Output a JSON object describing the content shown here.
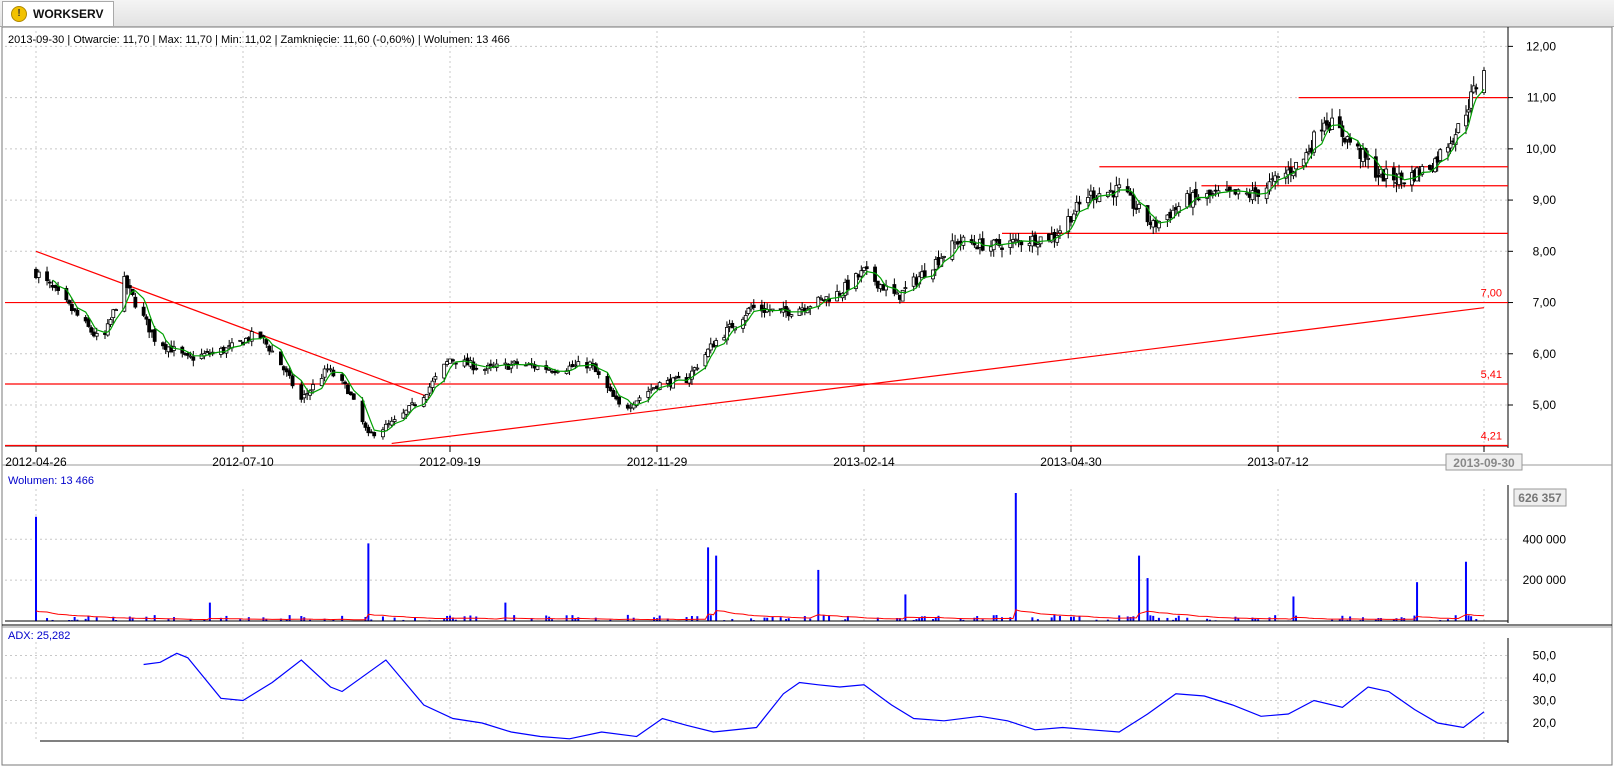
{
  "tab": {
    "label": "WORKSERV",
    "icon": "warning-icon"
  },
  "info_line": {
    "date": "2013-09-30",
    "otwarcie": "11,70",
    "max": "11,70",
    "min": "11,02",
    "zamkniecie": "11,60 (-0,60%)",
    "wolumen": "13 466",
    "text": "2013-09-30 | Otwarcie: 11,70 | Max: 11,70 | Min: 11,02 | Zamknięcie: 11,60 (-0,60%)  | Wolumen: 13 466"
  },
  "colors": {
    "candle": "#000000",
    "ma": "#00a000",
    "lines": "#ff0000",
    "volume": "#0000ff",
    "adx": "#0000ff",
    "grid": "#c8c8c8"
  },
  "chart_data": [
    {
      "type": "candlestick",
      "name": "price",
      "x_ticks": [
        "2012-04-26",
        "2012-07-10",
        "2012-09-19",
        "2012-11-29",
        "2013-02-14",
        "2013-04-30",
        "2013-07-12",
        "2013-09-30"
      ],
      "y_ticks": [
        "12,00",
        "11,00",
        "10,00",
        "9,00",
        "8,00",
        "7,00",
        "6,00",
        "5,00"
      ],
      "ylim": [
        4.2,
        12.3
      ],
      "grid": true,
      "close_path": [
        [
          "2012-04-26",
          7.6
        ],
        [
          "2012-05-10",
          6.8
        ],
        [
          "2012-05-20",
          6.2
        ],
        [
          "2012-05-28",
          7.4
        ],
        [
          "2012-06-08",
          6.3
        ],
        [
          "2012-06-20",
          5.9
        ],
        [
          "2012-07-05",
          6.1
        ],
        [
          "2012-07-15",
          6.4
        ],
        [
          "2012-07-22",
          5.9
        ],
        [
          "2012-07-30",
          5.1
        ],
        [
          "2012-08-08",
          5.7
        ],
        [
          "2012-08-15",
          5.3
        ],
        [
          "2012-08-22",
          4.4
        ],
        [
          "2012-09-01",
          4.7
        ],
        [
          "2012-09-10",
          5.2
        ],
        [
          "2012-09-19",
          5.9
        ],
        [
          "2012-10-01",
          5.7
        ],
        [
          "2012-10-12",
          5.8
        ],
        [
          "2012-10-25",
          5.7
        ],
        [
          "2012-11-06",
          5.8
        ],
        [
          "2012-11-17",
          4.9
        ],
        [
          "2012-11-29",
          5.4
        ],
        [
          "2012-12-10",
          5.5
        ],
        [
          "2012-12-20",
          6.2
        ],
        [
          "2013-01-03",
          6.9
        ],
        [
          "2013-01-15",
          6.8
        ],
        [
          "2013-01-27",
          7.0
        ],
        [
          "2013-02-05",
          7.2
        ],
        [
          "2013-02-14",
          7.6
        ],
        [
          "2013-02-26",
          7.1
        ],
        [
          "2013-03-08",
          7.6
        ],
        [
          "2013-03-20",
          8.2
        ],
        [
          "2013-04-01",
          8.1
        ],
        [
          "2013-04-12",
          8.2
        ],
        [
          "2013-04-24",
          8.3
        ],
        [
          "2013-05-06",
          9.1
        ],
        [
          "2013-05-17",
          9.2
        ],
        [
          "2013-05-29",
          8.5
        ],
        [
          "2013-06-10",
          9.0
        ],
        [
          "2013-06-21",
          9.1
        ],
        [
          "2013-07-03",
          9.1
        ],
        [
          "2013-07-12",
          9.4
        ],
        [
          "2013-07-22",
          9.8
        ],
        [
          "2013-07-30",
          10.6
        ],
        [
          "2013-08-08",
          10.2
        ],
        [
          "2013-08-20",
          9.5
        ],
        [
          "2013-08-30",
          9.4
        ],
        [
          "2013-09-10",
          9.7
        ],
        [
          "2013-09-20",
          10.4
        ],
        [
          "2013-09-30",
          11.6
        ]
      ],
      "horizontal_lines": [
        {
          "value": 7.0,
          "label": "7,00",
          "full_width": true
        },
        {
          "value": 5.41,
          "label": "5,41",
          "full_width": true
        },
        {
          "value": 4.21,
          "label": "4,21",
          "full_width": true
        },
        {
          "value": 11.0,
          "from": "2013-07-20",
          "label": ""
        },
        {
          "value": 9.65,
          "from": "2013-05-10",
          "label": ""
        },
        {
          "value": 9.28,
          "from": "2013-06-15",
          "label": ""
        },
        {
          "value": 8.35,
          "from": "2013-04-05",
          "label": ""
        }
      ],
      "trend_lines": [
        {
          "from": [
            "2012-04-26",
            8.0
          ],
          "to": [
            "2012-09-12",
            5.15
          ]
        },
        {
          "from": [
            "2012-08-30",
            4.25
          ],
          "to": [
            "2013-09-30",
            6.9
          ]
        }
      ],
      "cursor_label": "2013-09-30"
    },
    {
      "type": "bar",
      "name": "Wolumen",
      "label": "Wolumen: 13 466",
      "y_ticks": [
        "400 000",
        "200 000"
      ],
      "max_label": "626 357",
      "ylim": [
        0,
        626357
      ],
      "spikes": [
        [
          "2012-04-26",
          510000
        ],
        [
          "2012-06-28",
          90000
        ],
        [
          "2012-08-22",
          380000
        ],
        [
          "2012-10-08",
          90000
        ],
        [
          "2012-11-25",
          250000
        ],
        [
          "2012-12-18",
          360000
        ],
        [
          "2012-12-21",
          320000
        ],
        [
          "2013-01-28",
          250000
        ],
        [
          "2013-03-01",
          130000
        ],
        [
          "2013-04-10",
          626357
        ],
        [
          "2013-05-24",
          320000
        ],
        [
          "2013-05-27",
          210000
        ],
        [
          "2013-06-30",
          180000
        ],
        [
          "2013-07-18",
          120000
        ],
        [
          "2013-09-04",
          190000
        ],
        [
          "2013-09-23",
          290000
        ]
      ]
    },
    {
      "type": "line",
      "name": "ADX",
      "label": "ADX: 25,282",
      "y_ticks": [
        "50,0",
        "40,0",
        "30,0",
        "20,0"
      ],
      "ylim": [
        12,
        56
      ],
      "points": [
        [
          "2012-06-04",
          46
        ],
        [
          "2012-06-10",
          47
        ],
        [
          "2012-06-16",
          51
        ],
        [
          "2012-06-20",
          49
        ],
        [
          "2012-07-02",
          31
        ],
        [
          "2012-07-10",
          30
        ],
        [
          "2012-07-20",
          38
        ],
        [
          "2012-07-30",
          48
        ],
        [
          "2012-08-09",
          36
        ],
        [
          "2012-08-13",
          34
        ],
        [
          "2012-08-28",
          48
        ],
        [
          "2012-09-10",
          28
        ],
        [
          "2012-09-20",
          22
        ],
        [
          "2012-09-30",
          20
        ],
        [
          "2012-10-10",
          16
        ],
        [
          "2012-10-20",
          14
        ],
        [
          "2012-10-30",
          13
        ],
        [
          "2012-11-10",
          16
        ],
        [
          "2012-11-22",
          14
        ],
        [
          "2012-12-01",
          22
        ],
        [
          "2012-12-10",
          19
        ],
        [
          "2012-12-20",
          16
        ],
        [
          "2013-01-05",
          18
        ],
        [
          "2013-01-15",
          33
        ],
        [
          "2013-01-21",
          38
        ],
        [
          "2013-01-28",
          37
        ],
        [
          "2013-02-05",
          36
        ],
        [
          "2013-02-14",
          37
        ],
        [
          "2013-02-24",
          28
        ],
        [
          "2013-03-04",
          22
        ],
        [
          "2013-03-15",
          21
        ],
        [
          "2013-03-28",
          23
        ],
        [
          "2013-04-07",
          21
        ],
        [
          "2013-04-17",
          17
        ],
        [
          "2013-04-27",
          18
        ],
        [
          "2013-05-07",
          17
        ],
        [
          "2013-05-17",
          16
        ],
        [
          "2013-05-27",
          24
        ],
        [
          "2013-06-06",
          33
        ],
        [
          "2013-06-16",
          32
        ],
        [
          "2013-06-26",
          28
        ],
        [
          "2013-07-06",
          23
        ],
        [
          "2013-07-16",
          24
        ],
        [
          "2013-07-26",
          30
        ],
        [
          "2013-08-06",
          27
        ],
        [
          "2013-08-16",
          36
        ],
        [
          "2013-08-24",
          34
        ],
        [
          "2013-09-03",
          26
        ],
        [
          "2013-09-12",
          20
        ],
        [
          "2013-09-22",
          18
        ],
        [
          "2013-09-30",
          25
        ]
      ]
    }
  ]
}
